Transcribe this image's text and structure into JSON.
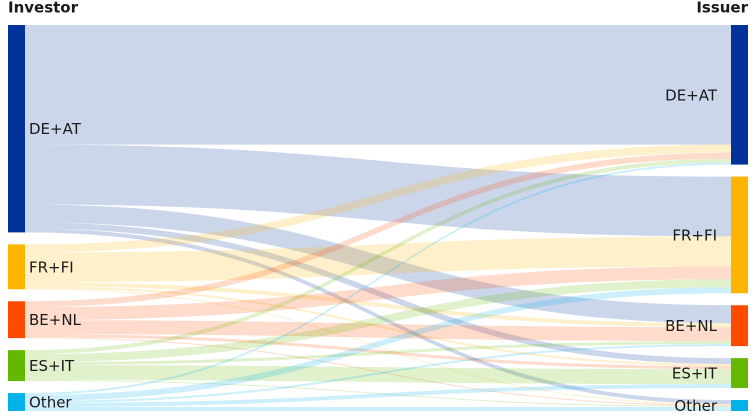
{
  "chart_data": {
    "type": "sankey",
    "left_title": "Investor",
    "right_title": "Issuer",
    "left_nodes": [
      "DE+AT",
      "FR+FI",
      "BE+NL",
      "ES+IT",
      "Other"
    ],
    "right_nodes": [
      "DE+AT",
      "FR+FI",
      "BE+NL",
      "ES+IT",
      "Other"
    ],
    "colors": [
      "#003299",
      "#ffb400",
      "#ff4b00",
      "#65b800",
      "#00b1ea"
    ],
    "flows": [
      [
        120,
        60,
        18,
        6,
        4
      ],
      [
        8,
        30,
        4,
        2,
        1
      ],
      [
        6,
        13,
        14,
        3,
        1
      ],
      [
        4,
        8,
        3,
        15,
        1
      ],
      [
        2,
        6,
        2,
        4,
        4
      ]
    ]
  }
}
